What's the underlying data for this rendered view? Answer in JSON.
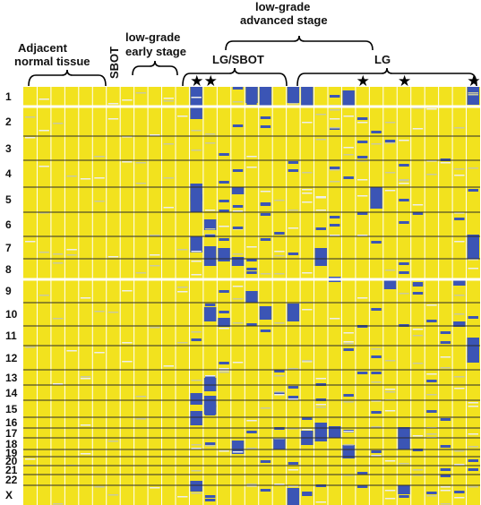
{
  "group_labels": {
    "adjacent_line1": "Adjacent",
    "adjacent_line2": "normal tissue",
    "sbot": "SBOT",
    "early_line1": "low-grade",
    "early_line2": "early stage",
    "advanced_line1": "low-grade",
    "advanced_line2": "advanced stage",
    "lg_sbot": "LG/SBOT",
    "lg": "LG"
  },
  "star_symbol": "★",
  "colors": {
    "background": "#f2e21e",
    "loss": "#3b55b5",
    "line": "#2b2b2b",
    "white": "#ffffff"
  },
  "chart_data": {
    "type": "heatmap",
    "rows": [
      "1",
      "2",
      "3",
      "4",
      "5",
      "6",
      "7",
      "8",
      "9",
      "10",
      "11",
      "12",
      "13",
      "14",
      "15",
      "16",
      "17",
      "18",
      "19",
      "20",
      "21",
      "22",
      "X"
    ],
    "n_samples": 33,
    "starred_samples": [
      12,
      13,
      24,
      27,
      32
    ]
  }
}
